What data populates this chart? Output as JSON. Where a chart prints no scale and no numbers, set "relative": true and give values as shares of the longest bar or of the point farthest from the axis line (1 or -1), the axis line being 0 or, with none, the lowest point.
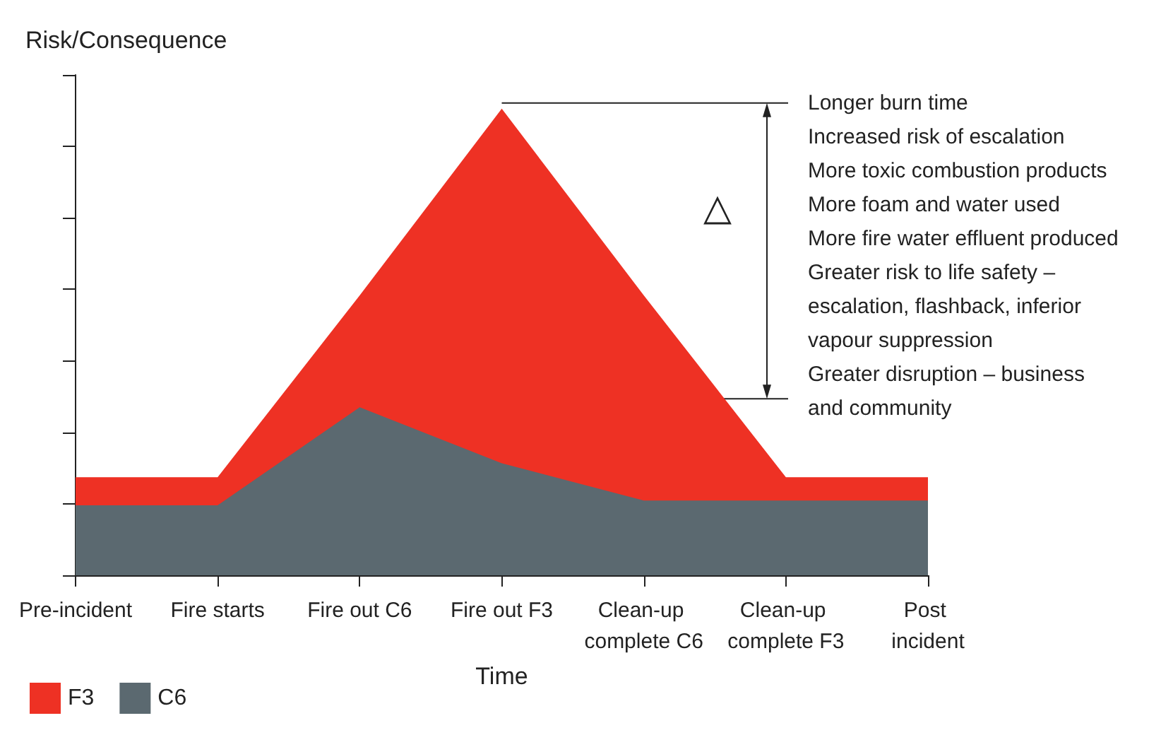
{
  "chart_data": {
    "type": "area",
    "relative": true,
    "ylabel": "Risk/Consequence",
    "xlabel": "Time",
    "categories": [
      "Pre-incident",
      "Fire starts",
      "Fire out C6",
      "Fire out F3",
      "Clean-up complete C6",
      "Clean-up complete F3",
      "Post incident"
    ],
    "series": [
      {
        "name": "F3",
        "color": "#ee3124",
        "values": [
          0.21,
          0.21,
          0.6,
          1,
          0.6,
          0.21,
          0.21
        ]
      },
      {
        "name": "C6",
        "color": "#5b6970",
        "values": [
          0.15,
          0.15,
          0.36,
          0.24,
          0.16,
          0.16,
          0.16
        ]
      }
    ],
    "annotations": [
      "Longer burn time",
      "Increased risk of escalation",
      "More toxic combustion products",
      "More foam and water used",
      "More fire water effluent produced",
      "Greater risk to life safety –",
      "escalation, flashback, inferior",
      "vapour suppression",
      "Greater disruption – business",
      "and community",
      "△"
    ],
    "legend": "bottom left",
    "grid": false,
    "marker": "none"
  }
}
